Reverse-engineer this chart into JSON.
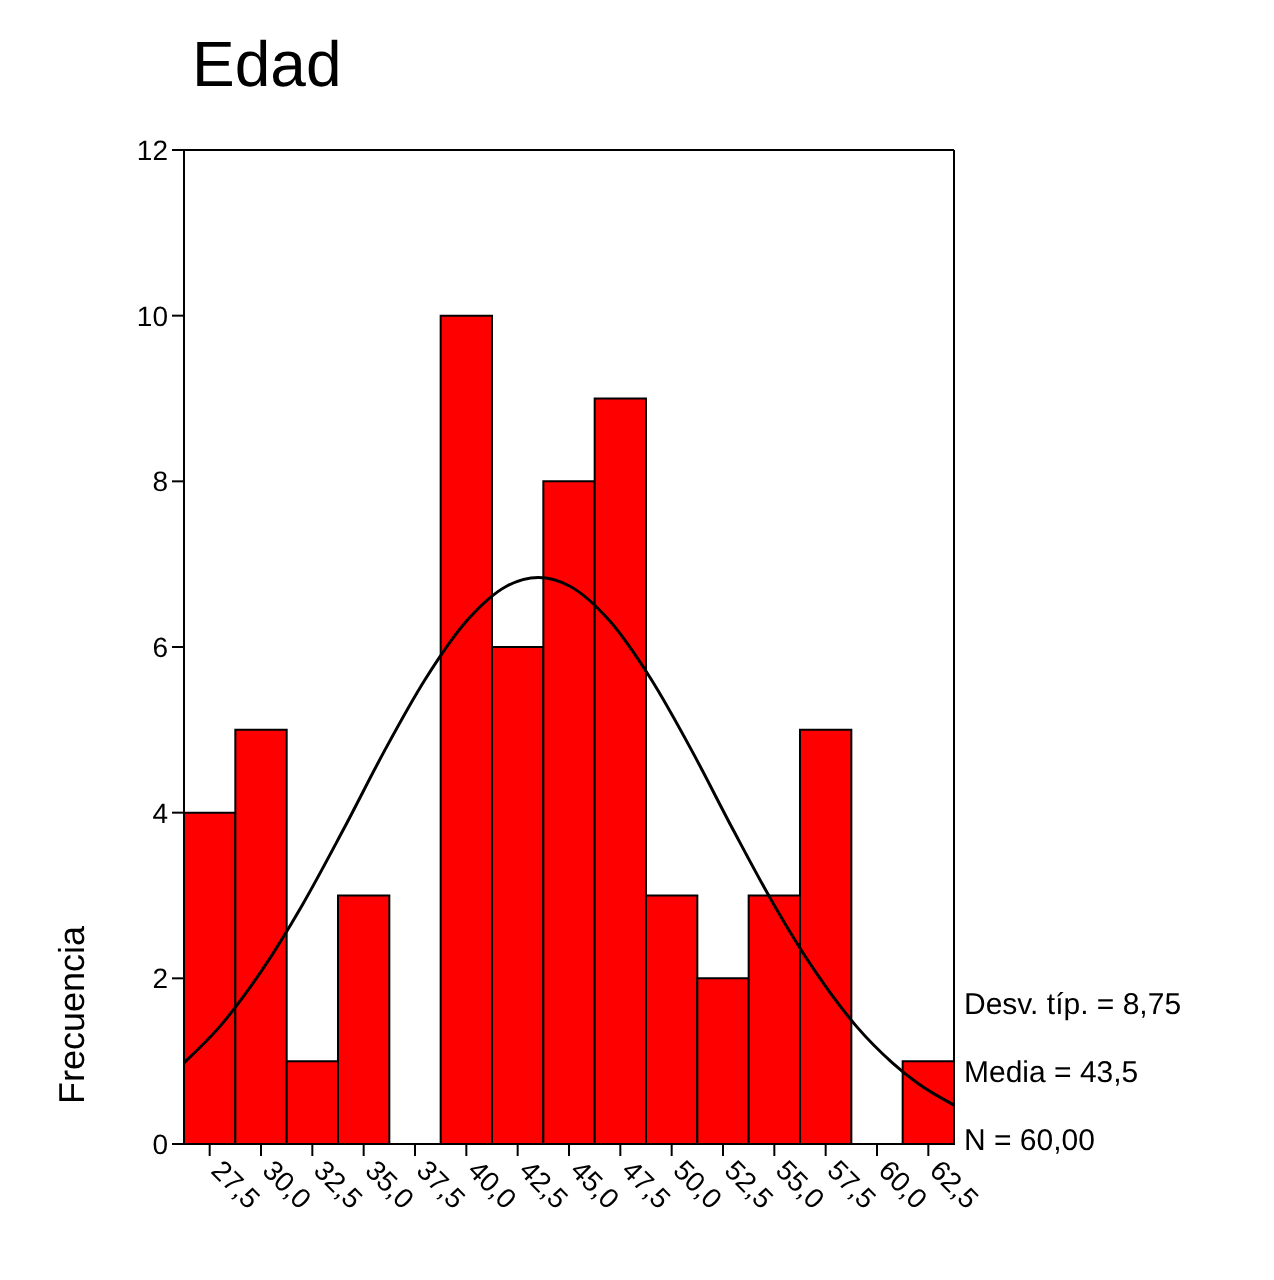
{
  "chart_data": {
    "type": "histogram",
    "title": "Edad",
    "ylabel": "Frecuencia",
    "bins": [
      26.25,
      28.75,
      31.25,
      33.75,
      36.25,
      38.75,
      41.25,
      43.75,
      46.25,
      48.75,
      51.25,
      53.75,
      56.25,
      58.75,
      61.25,
      63.75
    ],
    "series": [
      {
        "color": "#ff0000",
        "values": [
          4,
          5,
          1,
          3,
          0,
          10,
          6,
          8,
          9,
          3,
          2,
          3,
          5,
          0,
          1
        ]
      },
      {
        "type": "line",
        "color": "#000000",
        "x": [
          26.25,
          28,
          30,
          32,
          34,
          36,
          38,
          40,
          42,
          43.5,
          45,
          47,
          49,
          51,
          53,
          55,
          57,
          59,
          60.75,
          62,
          63.75
        ],
        "values": [
          0.98,
          1.42,
          2.08,
          2.88,
          3.79,
          4.74,
          5.61,
          6.31,
          6.74,
          6.84,
          6.74,
          6.31,
          5.61,
          4.74,
          3.79,
          2.88,
          2.08,
          1.42,
          0.98,
          0.73,
          0.47
        ]
      }
    ],
    "xlim": [
      26.25,
      63.75
    ],
    "xticks": [
      {
        "value": 27.5,
        "label": "27,5"
      },
      {
        "value": 30,
        "label": "30,0"
      },
      {
        "value": 32.5,
        "label": "32,5"
      },
      {
        "value": 35,
        "label": "35,0"
      },
      {
        "value": 37.5,
        "label": "37,5"
      },
      {
        "value": 40,
        "label": "40,0"
      },
      {
        "value": 42.5,
        "label": "42,5"
      },
      {
        "value": 45,
        "label": "45,0"
      },
      {
        "value": 47.5,
        "label": "47,5"
      },
      {
        "value": 50,
        "label": "50,0"
      },
      {
        "value": 52.5,
        "label": "52,5"
      },
      {
        "value": 55,
        "label": "55,0"
      },
      {
        "value": 57.5,
        "label": "57,5"
      },
      {
        "value": 60,
        "label": "60,0"
      },
      {
        "value": 62.5,
        "label": "62,5"
      }
    ],
    "ylim": [
      0,
      12
    ],
    "yticks": [
      0,
      2,
      4,
      6,
      8,
      10,
      12
    ],
    "annotations": [
      "Desv. típ. = 8,75",
      "Media = 43,5",
      "N = 60,00"
    ]
  }
}
